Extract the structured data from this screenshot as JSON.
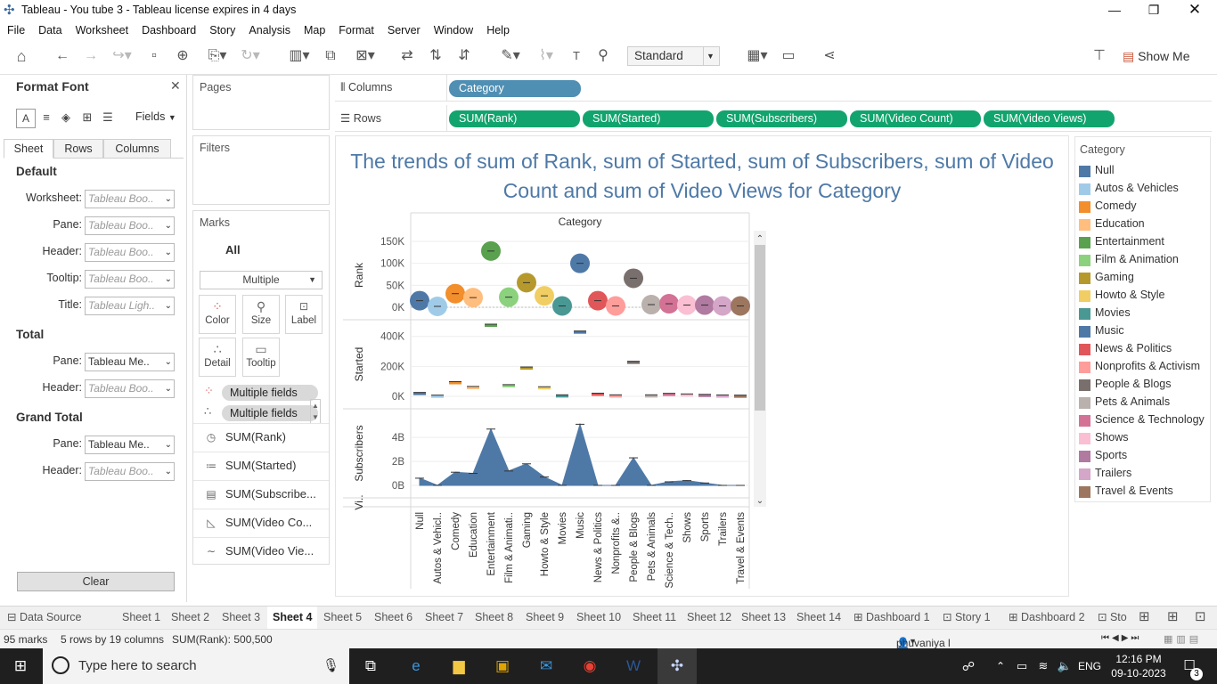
{
  "window": {
    "title": "Tableau - You tube 3 - Tableau license expires in 4 days"
  },
  "menu": [
    "File",
    "Data",
    "Worksheet",
    "Dashboard",
    "Story",
    "Analysis",
    "Map",
    "Format",
    "Server",
    "Window",
    "Help"
  ],
  "toolbar": {
    "fit_value": "Standard",
    "show_me_label": "Show Me"
  },
  "format_pane": {
    "title": "Format Font",
    "fields_label": "Fields",
    "tabs": [
      "Sheet",
      "Rows",
      "Columns"
    ],
    "sections": {
      "default": {
        "title": "Default",
        "rows": [
          {
            "label": "Worksheet:",
            "value": "Tableau Boo.."
          },
          {
            "label": "Pane:",
            "value": "Tableau Boo.."
          },
          {
            "label": "Header:",
            "value": "Tableau Boo.."
          },
          {
            "label": "Tooltip:",
            "value": "Tableau Boo.."
          },
          {
            "label": "Title:",
            "value": "Tableau Ligh.."
          }
        ]
      },
      "total": {
        "title": "Total",
        "rows": [
          {
            "label": "Pane:",
            "value": "Tableau Me.."
          },
          {
            "label": "Header:",
            "value": "Tableau Boo.."
          }
        ]
      },
      "grand_total": {
        "title": "Grand Total",
        "rows": [
          {
            "label": "Pane:",
            "value": "Tableau Me.."
          },
          {
            "label": "Header:",
            "value": "Tableau Boo.."
          }
        ]
      }
    },
    "clear_label": "Clear"
  },
  "cards": {
    "pages": "Pages",
    "filters": "Filters",
    "marks": {
      "title": "Marks",
      "all": "All",
      "mark_type": "Multiple",
      "buttons": [
        "Color",
        "Size",
        "Label",
        "Detail",
        "Tooltip"
      ],
      "pills": [
        "Multiple fields",
        "Multiple fields"
      ],
      "measures": [
        "SUM(Rank)",
        "SUM(Started)",
        "SUM(Subscribe...",
        "SUM(Video Co...",
        "SUM(Video Vie..."
      ]
    }
  },
  "shelves": {
    "columns_label": "Columns",
    "rows_label": "Rows",
    "columns": [
      "Category"
    ],
    "rows": [
      "SUM(Rank)",
      "SUM(Started)",
      "SUM(Subscribers)",
      "SUM(Video Count)",
      "SUM(Video Views)"
    ]
  },
  "viz": {
    "title": "The trends of sum of Rank, sum of Started, sum of Subscribers, sum of Video Count and sum of Video Views for Category"
  },
  "chart_data": {
    "type": "scatter",
    "column_header": "Category",
    "categories": [
      "Null",
      "Autos & Vehicl..",
      "Comedy",
      "Education",
      "Entertainment",
      "Film & Animati..",
      "Gaming",
      "Howto & Style",
      "Movies",
      "Music",
      "News & Politics",
      "Nonprofits &..",
      "People & Blogs",
      "Pets & Animals",
      "Science & Tech..",
      "Shows",
      "Sports",
      "Trailers",
      "Travel & Events"
    ],
    "colors": [
      "#4e79a7",
      "#a0cbe8",
      "#f28e2b",
      "#ffbe7d",
      "#59a14f",
      "#8cd17d",
      "#b6992d",
      "#f1ce63",
      "#499894",
      "#4e79a7",
      "#e15759",
      "#ff9d9a",
      "#79706e",
      "#bab0ac",
      "#d37295",
      "#fabfd2",
      "#b07aa1",
      "#d4a6c8",
      "#9d7660"
    ],
    "panes": [
      {
        "name": "Rank",
        "mark": "circle",
        "ticks": [
          "150K",
          "100K",
          "50K",
          "0K"
        ],
        "ylim": [
          0,
          150000
        ],
        "values": [
          15000,
          2000,
          31000,
          22000,
          128000,
          23000,
          56000,
          26000,
          3000,
          100000,
          15000,
          3000,
          66000,
          6000,
          8000,
          5000,
          5000,
          3000,
          3000
        ]
      },
      {
        "name": "Started",
        "mark": "gantt",
        "ticks": [
          "400K",
          "200K",
          "0K"
        ],
        "ylim": [
          0,
          440000
        ],
        "values": [
          20000,
          2000,
          92000,
          60000,
          480000,
          72000,
          190000,
          58000,
          4000,
          430000,
          15000,
          4000,
          228000,
          4000,
          14000,
          10000,
          7000,
          3000,
          2000
        ]
      },
      {
        "name": "Subscribers",
        "mark": "area",
        "ticks": [
          "4B",
          "2B",
          "0B"
        ],
        "ylim": [
          0,
          5500000000
        ],
        "values": [
          600000000,
          0,
          1100000000,
          1000000000,
          4700000000,
          1200000000,
          1800000000,
          700000000,
          0,
          5100000000,
          0,
          0,
          2300000000,
          0,
          300000000,
          400000000,
          200000000,
          0,
          0
        ]
      },
      {
        "name": "Vi..",
        "mark": "truncated",
        "ticks": [],
        "ylim": [
          0,
          1
        ],
        "values": []
      }
    ]
  },
  "legend": {
    "title": "Category",
    "items": [
      {
        "label": "Null",
        "color": "#4e79a7"
      },
      {
        "label": "Autos & Vehicles",
        "color": "#a0cbe8"
      },
      {
        "label": "Comedy",
        "color": "#f28e2b"
      },
      {
        "label": "Education",
        "color": "#ffbe7d"
      },
      {
        "label": "Entertainment",
        "color": "#59a14f"
      },
      {
        "label": "Film & Animation",
        "color": "#8cd17d"
      },
      {
        "label": "Gaming",
        "color": "#b6992d"
      },
      {
        "label": "Howto & Style",
        "color": "#f1ce63"
      },
      {
        "label": "Movies",
        "color": "#499894"
      },
      {
        "label": "Music",
        "color": "#4e79a7"
      },
      {
        "label": "News & Politics",
        "color": "#e15759"
      },
      {
        "label": "Nonprofits & Activism",
        "color": "#ff9d9a"
      },
      {
        "label": "People & Blogs",
        "color": "#79706e"
      },
      {
        "label": "Pets & Animals",
        "color": "#bab0ac"
      },
      {
        "label": "Science & Technology",
        "color": "#d37295"
      },
      {
        "label": "Shows",
        "color": "#fabfd2"
      },
      {
        "label": "Sports",
        "color": "#b07aa1"
      },
      {
        "label": "Trailers",
        "color": "#d4a6c8"
      },
      {
        "label": "Travel & Events",
        "color": "#9d7660"
      }
    ]
  },
  "sheet_tabs": [
    "Data Source",
    "Sheet 1",
    "Sheet 2",
    "Sheet 3",
    "Sheet 4",
    "Sheet 5",
    "Sheet 6",
    "Sheet 7",
    "Sheet 8",
    "Sheet 9",
    "Sheet 10",
    "Sheet 11",
    "Sheet 12",
    "Sheet 13",
    "Sheet 14",
    "Dashboard 1",
    "Story 1",
    "Dashboard 2",
    "Sto"
  ],
  "active_sheet": "Sheet 4",
  "status": {
    "marks": "95 marks",
    "dims": "5 rows by 19 columns",
    "sum": "SUM(Rank): 500,500",
    "user": "phuvaniya l"
  },
  "taskbar": {
    "search_placeholder": "Type here to search",
    "language": "ENG",
    "time": "12:16 PM",
    "date": "09-10-2023",
    "notifications": "3"
  }
}
